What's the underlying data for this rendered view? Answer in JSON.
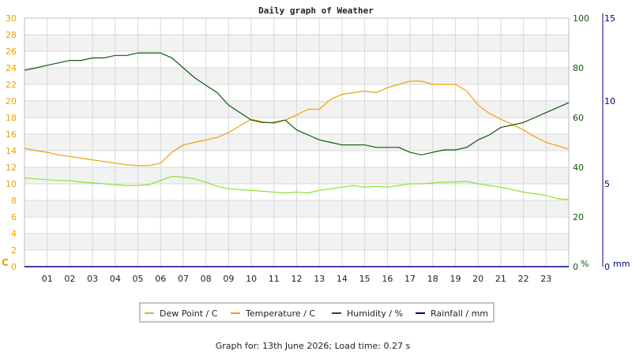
{
  "colors": {
    "dew_point": "#8ae234",
    "temperature": "#f0a000",
    "humidity": "#0a5c0a",
    "rainfall": "#00008b",
    "band": "#f2f2f2",
    "grid": "#d8d8d8"
  },
  "chart_data": {
    "type": "line",
    "title": "Daily graph of Weather",
    "x_hours": [
      0,
      0.5,
      1,
      1.5,
      2,
      2.5,
      3,
      3.5,
      4,
      4.5,
      5,
      5.5,
      6,
      6.5,
      7,
      7.5,
      8,
      8.5,
      9,
      9.5,
      10,
      10.5,
      11,
      11.5,
      12,
      12.5,
      13,
      13.5,
      14,
      14.5,
      15,
      15.5,
      16,
      16.5,
      17,
      17.5,
      18,
      18.5,
      19,
      19.5,
      20,
      20.5,
      21,
      21.5,
      22,
      22.5,
      23,
      23.5,
      24
    ],
    "xlim": [
      0,
      24
    ],
    "x_tick_labels": [
      "01",
      "02",
      "03",
      "04",
      "05",
      "06",
      "07",
      "08",
      "09",
      "10",
      "11",
      "12",
      "13",
      "14",
      "15",
      "16",
      "17",
      "18",
      "19",
      "20",
      "21",
      "22",
      "23"
    ],
    "axes": {
      "left": {
        "unit_label": "C",
        "ylim": [
          0,
          30
        ],
        "ticks": [
          "0",
          "2",
          "4",
          "6",
          "8",
          "10",
          "12",
          "14",
          "16",
          "18",
          "20",
          "22",
          "24",
          "26",
          "28",
          "30"
        ]
      },
      "right": {
        "unit_label": "%",
        "ylim": [
          0,
          100
        ],
        "ticks": [
          "0",
          "20",
          "40",
          "60",
          "80",
          "100"
        ]
      },
      "far_right": {
        "unit_label": "mm",
        "ylim": [
          0,
          15
        ],
        "ticks": [
          "0",
          "5",
          "10",
          "15"
        ]
      }
    },
    "series": [
      {
        "name": "Dew Point / C",
        "axis": "left",
        "values": [
          10.7,
          10.6,
          10.5,
          10.4,
          10.4,
          10.2,
          10.1,
          10.0,
          9.9,
          9.8,
          9.8,
          9.9,
          10.4,
          10.9,
          10.8,
          10.6,
          10.2,
          9.7,
          9.4,
          9.3,
          9.2,
          9.1,
          9.0,
          8.9,
          9.0,
          8.9,
          9.2,
          9.4,
          9.6,
          9.8,
          9.6,
          9.7,
          9.6,
          9.8,
          10.0,
          10.0,
          10.1,
          10.2,
          10.2,
          10.3,
          10.0,
          9.8,
          9.6,
          9.3,
          9.0,
          8.8,
          8.6,
          8.2,
          8.1
        ]
      },
      {
        "name": "Temperature / C",
        "axis": "left",
        "values": [
          14.3,
          14.0,
          13.8,
          13.5,
          13.3,
          13.1,
          12.9,
          12.7,
          12.5,
          12.3,
          12.2,
          12.2,
          12.5,
          13.8,
          14.7,
          15.0,
          15.3,
          15.6,
          16.2,
          17.0,
          17.8,
          17.5,
          17.3,
          17.7,
          18.3,
          19.0,
          19.0,
          20.2,
          20.8,
          21.0,
          21.2,
          21.0,
          21.6,
          22.0,
          22.4,
          22.4,
          22.0,
          22.0,
          22.0,
          21.2,
          19.5,
          18.5,
          17.8,
          17.2,
          16.5,
          15.7,
          15.0,
          14.6,
          14.2
        ]
      },
      {
        "name": "Humidity / %",
        "axis": "right",
        "values": [
          79,
          80,
          81,
          82,
          83,
          83,
          84,
          84,
          85,
          85,
          86,
          86,
          86,
          84,
          80,
          76,
          73,
          70,
          65,
          62,
          59,
          58,
          58,
          59,
          55,
          53,
          51,
          50,
          49,
          49,
          49,
          48,
          48,
          48,
          46,
          45,
          46,
          47,
          47,
          48,
          51,
          53,
          56,
          57,
          58,
          60,
          62,
          64,
          66
        ]
      },
      {
        "name": "Rainfall / mm",
        "axis": "far_right",
        "values": [
          0,
          0,
          0,
          0,
          0,
          0,
          0,
          0,
          0,
          0,
          0,
          0,
          0,
          0,
          0,
          0,
          0,
          0,
          0,
          0,
          0,
          0,
          0,
          0,
          0,
          0,
          0,
          0,
          0,
          0,
          0,
          0,
          0,
          0,
          0,
          0,
          0,
          0,
          0,
          0,
          0,
          0,
          0,
          0,
          0,
          0,
          0,
          0,
          0
        ]
      }
    ],
    "grid": true,
    "legend_position": "bottom"
  },
  "footer": {
    "text": "Graph for: 13th June 2026; Load time: 0.27 s"
  }
}
